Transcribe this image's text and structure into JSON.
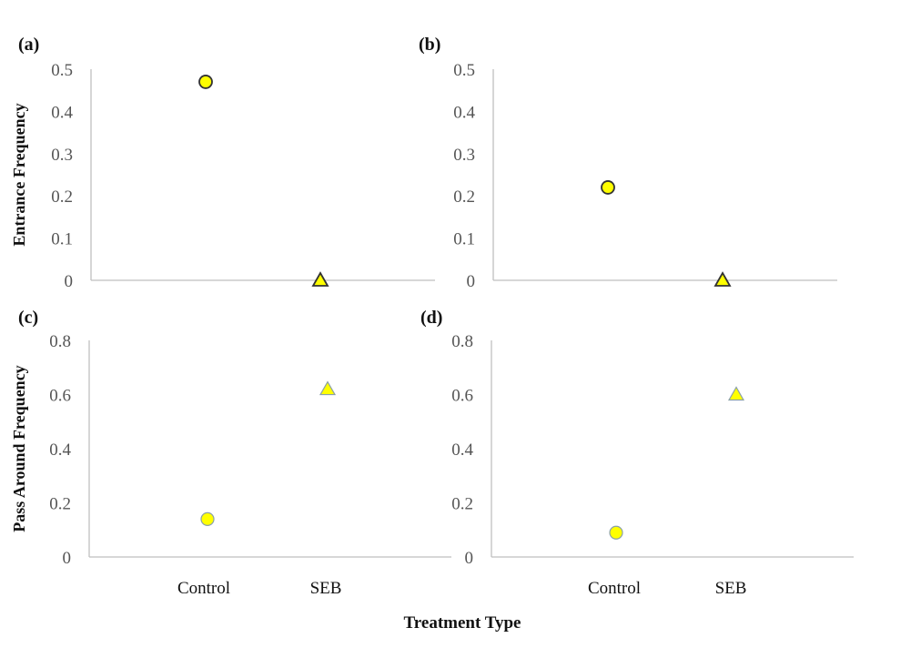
{
  "chart_data": {
    "type": "scatter",
    "xlabel": "Treatment Type",
    "categories": [
      "Control",
      "SEB"
    ],
    "row_ylabels": [
      "Entrance Frequency",
      "Pass Around Frequency"
    ],
    "colors": {
      "marker_fill": "#ffff00",
      "axis": "#bfbfbf",
      "marker_edge_top": "#333333",
      "marker_edge_bottom": "#8aa0a8"
    },
    "grid": false,
    "panels": [
      {
        "label": "(a)",
        "ylim": [
          0,
          0.5
        ],
        "yticks": [
          "0",
          "0.1",
          "0.2",
          "0.3",
          "0.4",
          "0.5"
        ],
        "yvalues": [
          0,
          0.1,
          0.2,
          0.3,
          0.4,
          0.5
        ],
        "points": [
          {
            "category": "Control",
            "y": 0.47,
            "marker": "circle"
          },
          {
            "category": "SEB",
            "y": 0.0,
            "marker": "triangle"
          }
        ]
      },
      {
        "label": "(b)",
        "ylim": [
          0,
          0.5
        ],
        "yticks": [
          "0",
          "0.1",
          "0.2",
          "0.3",
          "0.4",
          "0.5"
        ],
        "yvalues": [
          0,
          0.1,
          0.2,
          0.3,
          0.4,
          0.5
        ],
        "points": [
          {
            "category": "Control",
            "y": 0.22,
            "marker": "circle"
          },
          {
            "category": "SEB",
            "y": 0.0,
            "marker": "triangle"
          }
        ]
      },
      {
        "label": "(c)",
        "ylim": [
          0,
          0.8
        ],
        "yticks": [
          "0",
          "0.2",
          "0.4",
          "0.6",
          "0.8"
        ],
        "yvalues": [
          0,
          0.2,
          0.4,
          0.6,
          0.8
        ],
        "points": [
          {
            "category": "Control",
            "y": 0.14,
            "marker": "circle"
          },
          {
            "category": "SEB",
            "y": 0.62,
            "marker": "triangle"
          }
        ]
      },
      {
        "label": "(d)",
        "ylim": [
          0,
          0.8
        ],
        "yticks": [
          "0",
          "0.2",
          "0.4",
          "0.6",
          "0.8"
        ],
        "yvalues": [
          0,
          0.2,
          0.4,
          0.6,
          0.8
        ],
        "points": [
          {
            "category": "Control",
            "y": 0.09,
            "marker": "circle"
          },
          {
            "category": "SEB",
            "y": 0.6,
            "marker": "triangle"
          }
        ]
      }
    ]
  }
}
